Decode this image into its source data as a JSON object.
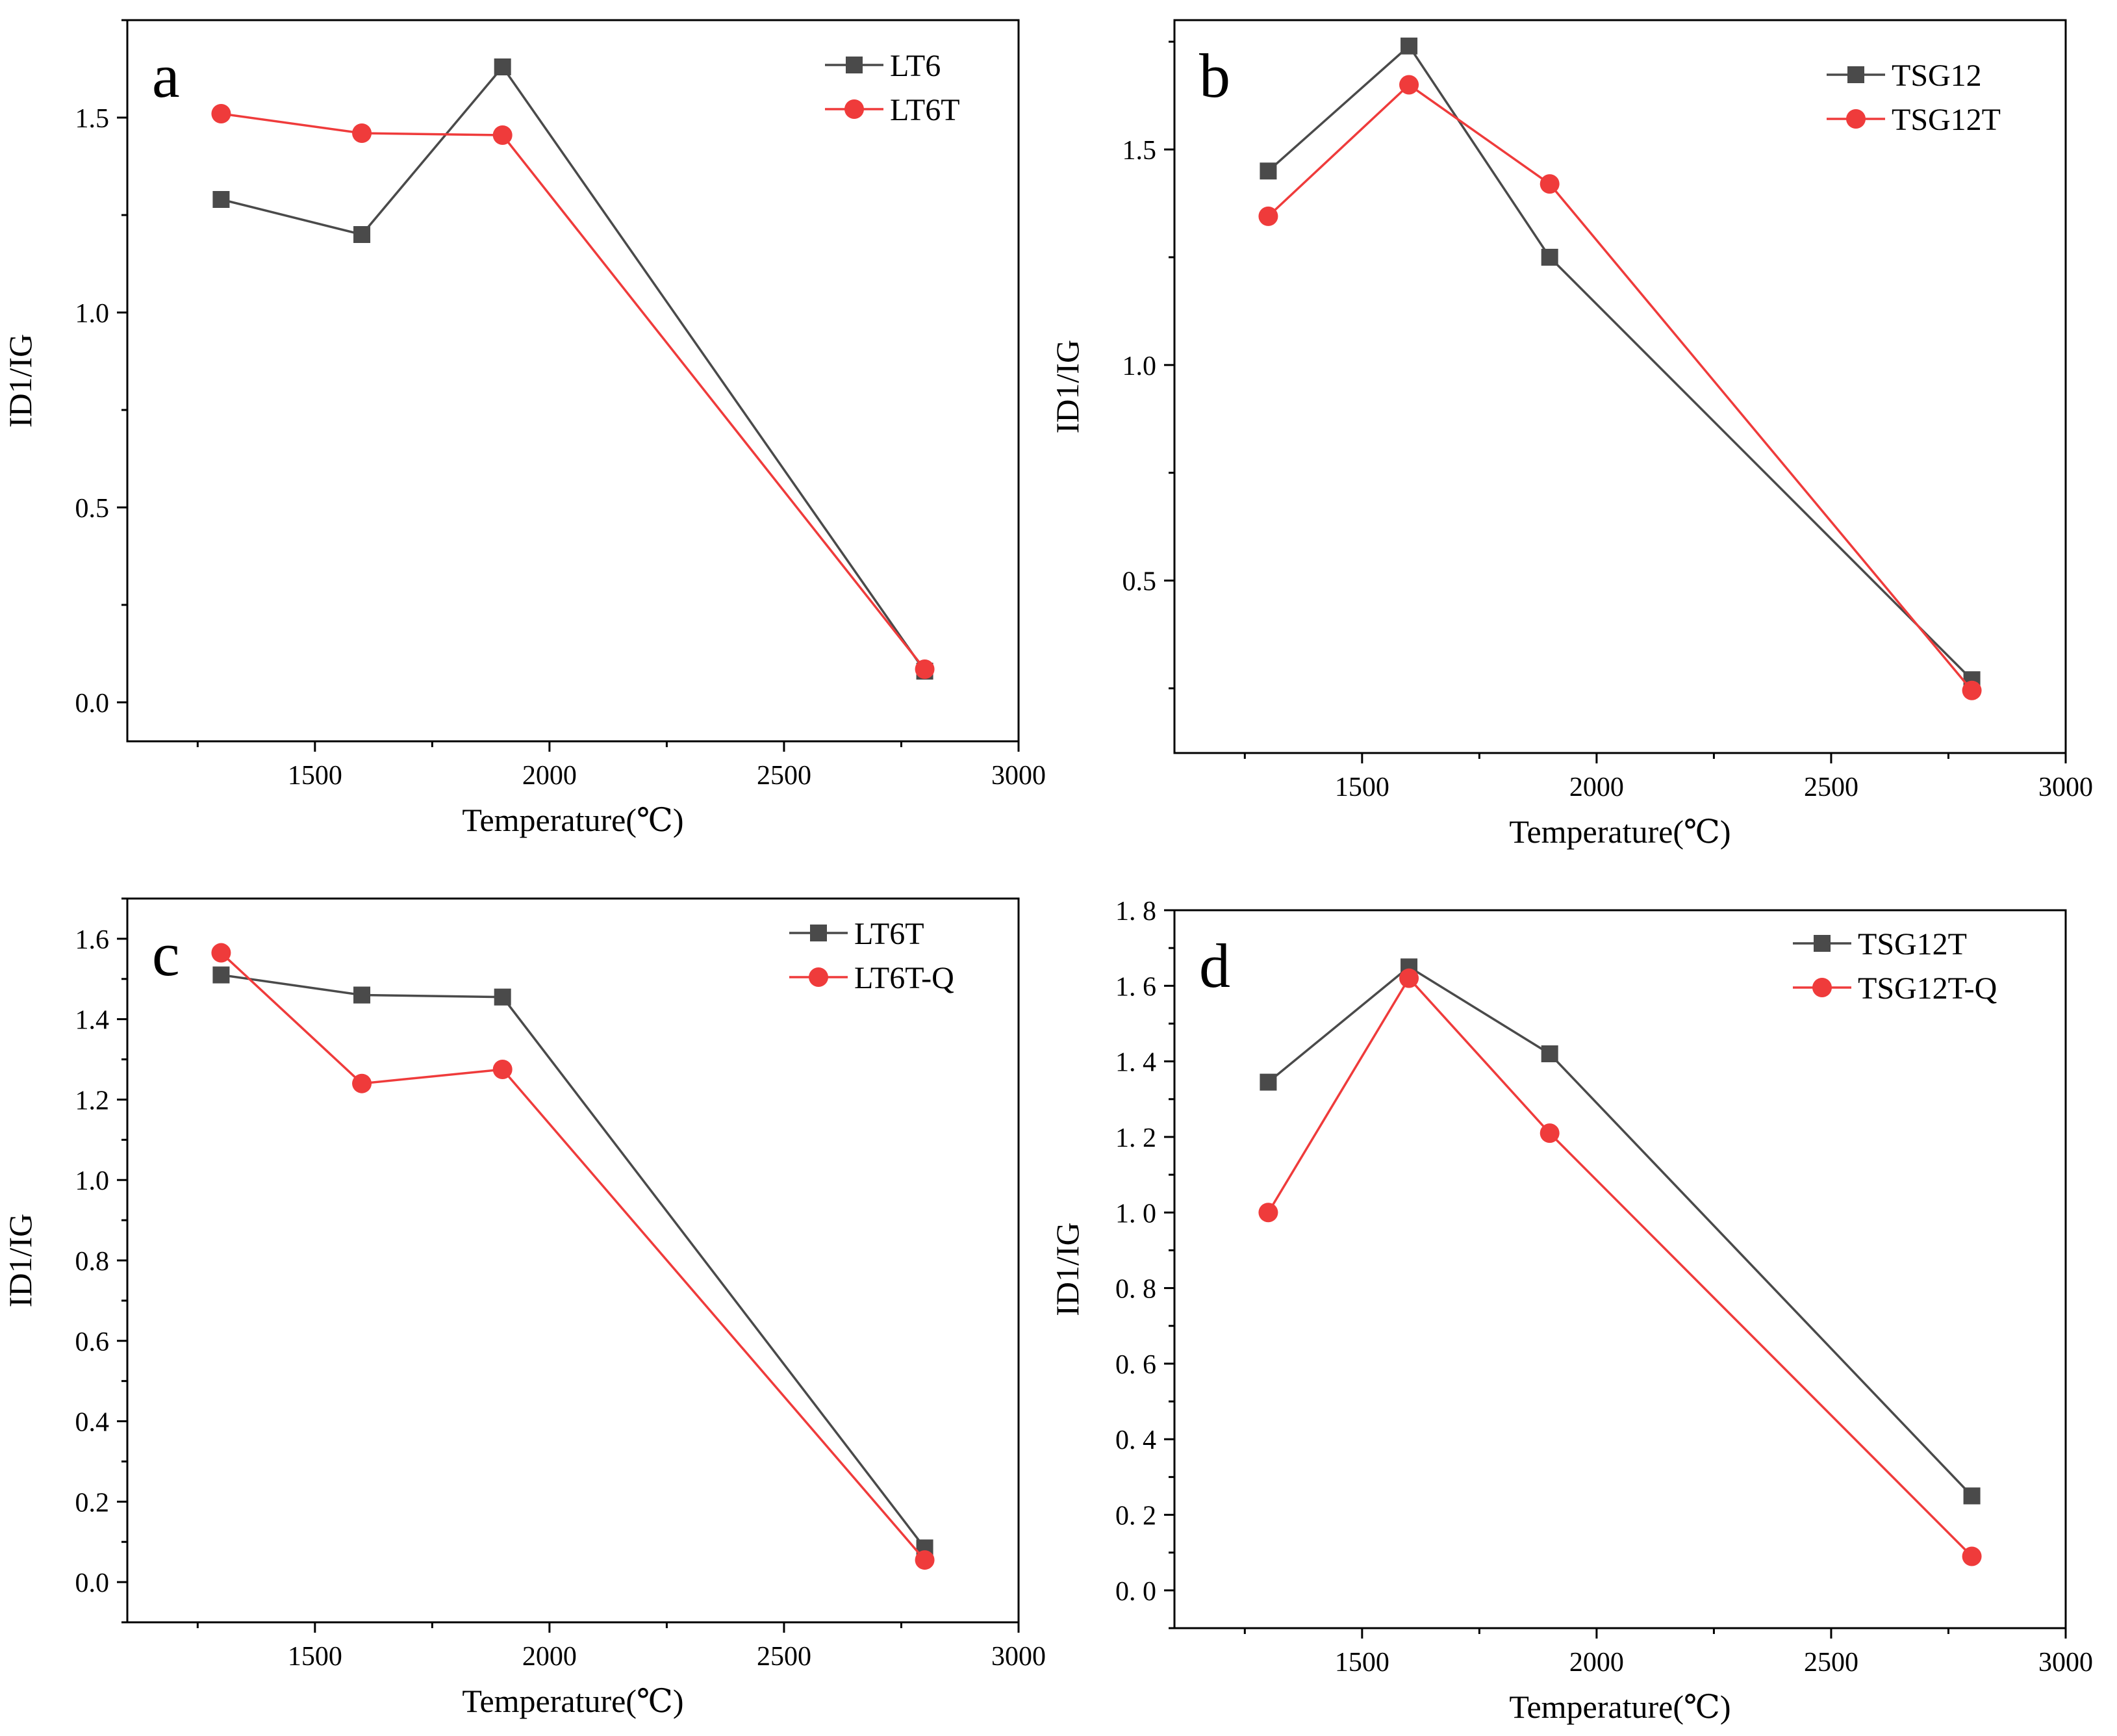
{
  "chart_data": [
    {
      "panel": "a",
      "type": "line",
      "xlabel": "Temperature(℃)",
      "ylabel": "ID1/IG",
      "xlim": [
        1100,
        3000
      ],
      "ylim": [
        -0.1,
        1.75
      ],
      "xticks": [
        1500,
        2000,
        2500,
        3000
      ],
      "yticks": [
        0.0,
        0.5,
        1.0,
        1.5
      ],
      "ytick_labels": [
        "0.0",
        "0.5",
        "1.0",
        "1.5"
      ],
      "x": [
        1300,
        1600,
        1900,
        2800
      ],
      "series": [
        {
          "name": "LT6",
          "color": "#4a4a4a",
          "marker": "square",
          "values": [
            1.29,
            1.2,
            1.63,
            0.08
          ]
        },
        {
          "name": "LT6T",
          "color": "#ef3b3b",
          "marker": "circle",
          "values": [
            1.51,
            1.46,
            1.455,
            0.085
          ]
        }
      ]
    },
    {
      "panel": "b",
      "type": "line",
      "xlabel": "Temperature(℃)",
      "ylabel": "ID1/IG",
      "xlim": [
        1100,
        3000
      ],
      "ylim": [
        0.1,
        1.8
      ],
      "xticks": [
        1500,
        2000,
        2500,
        3000
      ],
      "yticks": [
        0.5,
        1.0,
        1.5
      ],
      "ytick_labels": [
        "0.5",
        "1.0",
        "1.5"
      ],
      "x": [
        1300,
        1600,
        1900,
        2800
      ],
      "series": [
        {
          "name": "TSG12",
          "color": "#4a4a4a",
          "marker": "square",
          "values": [
            1.45,
            1.74,
            1.25,
            0.27
          ]
        },
        {
          "name": "TSG12T",
          "color": "#ef3b3b",
          "marker": "circle",
          "values": [
            1.345,
            1.65,
            1.42,
            0.245
          ]
        }
      ]
    },
    {
      "panel": "c",
      "type": "line",
      "xlabel": "Temperature(℃)",
      "ylabel": "ID1/IG",
      "xlim": [
        1100,
        3000
      ],
      "ylim": [
        -0.1,
        1.7
      ],
      "xticks": [
        1500,
        2000,
        2500,
        3000
      ],
      "yticks": [
        0.0,
        0.2,
        0.4,
        0.6,
        0.8,
        1.0,
        1.2,
        1.4,
        1.6
      ],
      "ytick_labels": [
        "0.0",
        "0.2",
        "0.4",
        "0.6",
        "0.8",
        "1.0",
        "1.2",
        "1.4",
        "1.6"
      ],
      "x": [
        1300,
        1600,
        1900,
        2800
      ],
      "series": [
        {
          "name": "LT6T",
          "color": "#4a4a4a",
          "marker": "square",
          "values": [
            1.51,
            1.46,
            1.455,
            0.085
          ]
        },
        {
          "name": "LT6T-Q",
          "color": "#ef3b3b",
          "marker": "circle",
          "values": [
            1.565,
            1.24,
            1.275,
            0.055
          ]
        }
      ]
    },
    {
      "panel": "d",
      "type": "line",
      "xlabel": "Temperature(℃)",
      "ylabel": "ID1/IG",
      "xlim": [
        1100,
        3000
      ],
      "ylim": [
        -0.1,
        1.8
      ],
      "xticks": [
        1500,
        2000,
        2500,
        3000
      ],
      "yticks": [
        0.0,
        0.2,
        0.4,
        0.6,
        0.8,
        1.0,
        1.2,
        1.4,
        1.6,
        1.8
      ],
      "ytick_labels": [
        "0. 0",
        "0. 2",
        "0. 4",
        "0. 6",
        "0. 8",
        "1. 0",
        "1. 2",
        "1. 4",
        "1. 6",
        "1. 8"
      ],
      "x": [
        1300,
        1600,
        1900,
        2800
      ],
      "series": [
        {
          "name": "TSG12T",
          "color": "#4a4a4a",
          "marker": "square",
          "values": [
            1.345,
            1.65,
            1.42,
            0.25
          ]
        },
        {
          "name": "TSG12T-Q",
          "color": "#ef3b3b",
          "marker": "circle",
          "values": [
            1.0,
            1.62,
            1.21,
            0.09
          ]
        }
      ]
    }
  ]
}
